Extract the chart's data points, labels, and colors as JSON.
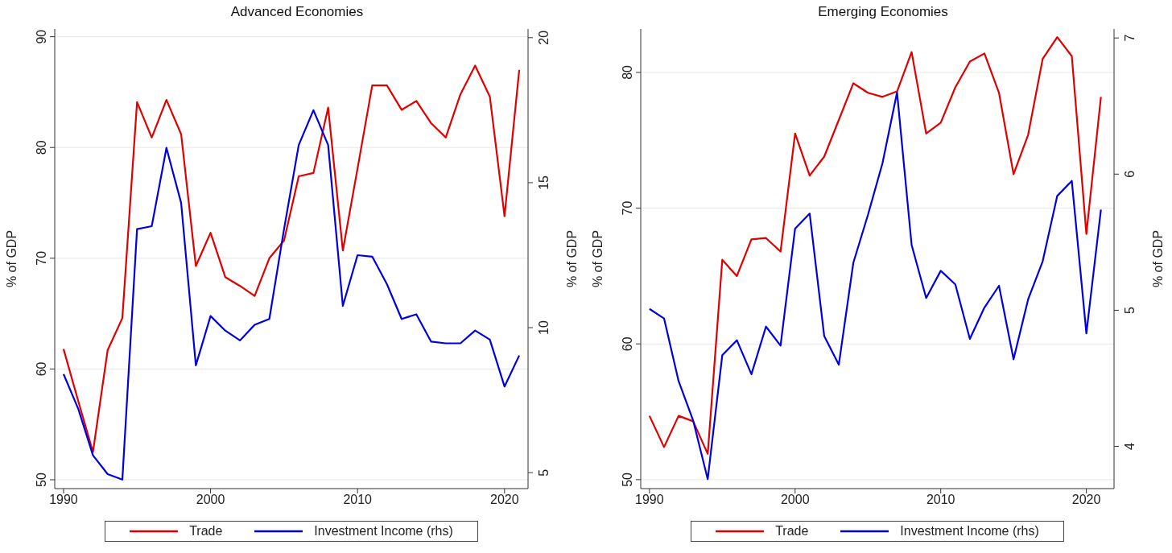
{
  "chart_data": [
    {
      "type": "line",
      "title": "Advanced Economies",
      "ylabel": "% of GDP",
      "y2label": "% of GDP",
      "x": [
        1990,
        1991,
        1992,
        1993,
        1994,
        1995,
        1996,
        1997,
        1998,
        1999,
        2000,
        2001,
        2002,
        2003,
        2004,
        2005,
        2006,
        2007,
        2008,
        2009,
        2010,
        2011,
        2012,
        2013,
        2014,
        2015,
        2016,
        2017,
        2018,
        2019,
        2020,
        2021
      ],
      "series": [
        {
          "name": "Trade",
          "color": "#e00000",
          "values": [
            61.8,
            57.1,
            52.5,
            61.7,
            64.6,
            84.1,
            80.9,
            84.3,
            81.2,
            69.3,
            72.3,
            68.3,
            67.5,
            66.6,
            70.0,
            71.6,
            77.4,
            77.7,
            83.6,
            70.7,
            78.1,
            85.6,
            85.6,
            83.4,
            84.2,
            82.2,
            80.9,
            84.8,
            87.4,
            84.6,
            73.8,
            87.0
          ]
        },
        {
          "name": "Investment Income (rhs)",
          "color": "#0000e0",
          "axis": "y2",
          "values": [
            8.4,
            7.2,
            5.6,
            4.95,
            4.76,
            13.4,
            13.5,
            16.2,
            14.3,
            8.7,
            10.4,
            9.9,
            9.56,
            10.1,
            10.3,
            13.4,
            16.3,
            17.5,
            16.3,
            10.75,
            12.5,
            12.45,
            11.5,
            10.3,
            10.46,
            9.52,
            9.46,
            9.46,
            9.9,
            9.59,
            7.97,
            9.04
          ]
        }
      ],
      "xlim": [
        1989.4,
        2021.6
      ],
      "xticks": [
        1990,
        2000,
        2010,
        2020
      ],
      "ylim": [
        49.2,
        90.7
      ],
      "yticks": [
        50,
        60,
        70,
        80,
        90
      ],
      "y2lim": [
        4.45,
        20.3
      ],
      "y2ticks": [
        5,
        10,
        15,
        20
      ],
      "grid": "y",
      "legend": "bottom"
    },
    {
      "type": "line",
      "title": "Emerging Economies",
      "ylabel": "% of GDP",
      "y2label": "% of GDP",
      "x": [
        1990,
        1991,
        1992,
        1993,
        1994,
        1995,
        1996,
        1997,
        1998,
        1999,
        2000,
        2001,
        2002,
        2003,
        2004,
        2005,
        2006,
        2007,
        2008,
        2009,
        2010,
        2011,
        2012,
        2013,
        2014,
        2015,
        2016,
        2017,
        2018,
        2019,
        2020,
        2021
      ],
      "series": [
        {
          "name": "Trade",
          "color": "#e00000",
          "values": [
            54.7,
            52.4,
            54.7,
            54.3,
            51.9,
            66.2,
            65.0,
            67.7,
            67.8,
            66.8,
            75.5,
            72.4,
            73.8,
            76.5,
            79.2,
            78.5,
            78.2,
            78.6,
            81.5,
            75.5,
            76.3,
            78.9,
            80.8,
            81.4,
            78.5,
            72.5,
            75.4,
            81.0,
            82.6,
            81.2,
            68.1,
            78.2
          ]
        },
        {
          "name": "Investment Income (rhs)",
          "color": "#0000e0",
          "axis": "y2",
          "values": [
            5.01,
            4.94,
            4.48,
            4.19,
            3.76,
            4.67,
            4.78,
            4.53,
            4.88,
            4.74,
            5.6,
            5.71,
            4.81,
            4.6,
            5.35,
            5.7,
            6.08,
            6.6,
            5.48,
            5.09,
            5.29,
            5.19,
            4.79,
            5.02,
            5.18,
            4.64,
            5.08,
            5.36,
            5.84,
            5.95,
            4.83,
            5.74
          ]
        }
      ],
      "xlim": [
        1989.4,
        2021.9
      ],
      "xticks": [
        1990,
        2000,
        2010,
        2020
      ],
      "ylim": [
        49.34,
        83.2
      ],
      "yticks": [
        50,
        60,
        70,
        80
      ],
      "y2lim": [
        3.69,
        7.066
      ],
      "y2ticks": [
        4,
        5,
        6,
        7
      ],
      "grid": "y",
      "legend": "bottom"
    }
  ]
}
